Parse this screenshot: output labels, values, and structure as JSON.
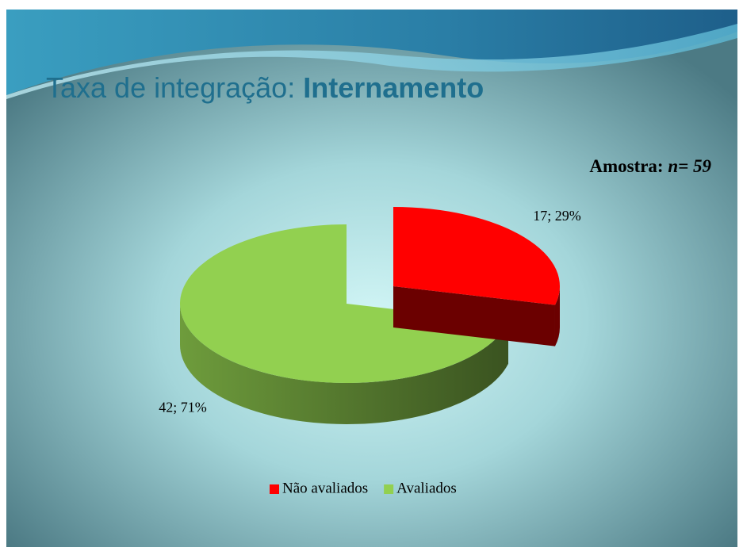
{
  "chart_data": {
    "type": "pie3d",
    "title": "Taxa de integração:",
    "title_emphasis": "Internamento",
    "annotation": {
      "label": "Amostra:",
      "value": "n= 59"
    },
    "categories": [
      "Não avaliados",
      "Avaliados"
    ],
    "values": [
      17,
      42
    ],
    "value_labels": [
      "17; 29%",
      "42; 71%"
    ],
    "colors": [
      "#ff0000",
      "#92d050"
    ],
    "legend": "bottom"
  }
}
